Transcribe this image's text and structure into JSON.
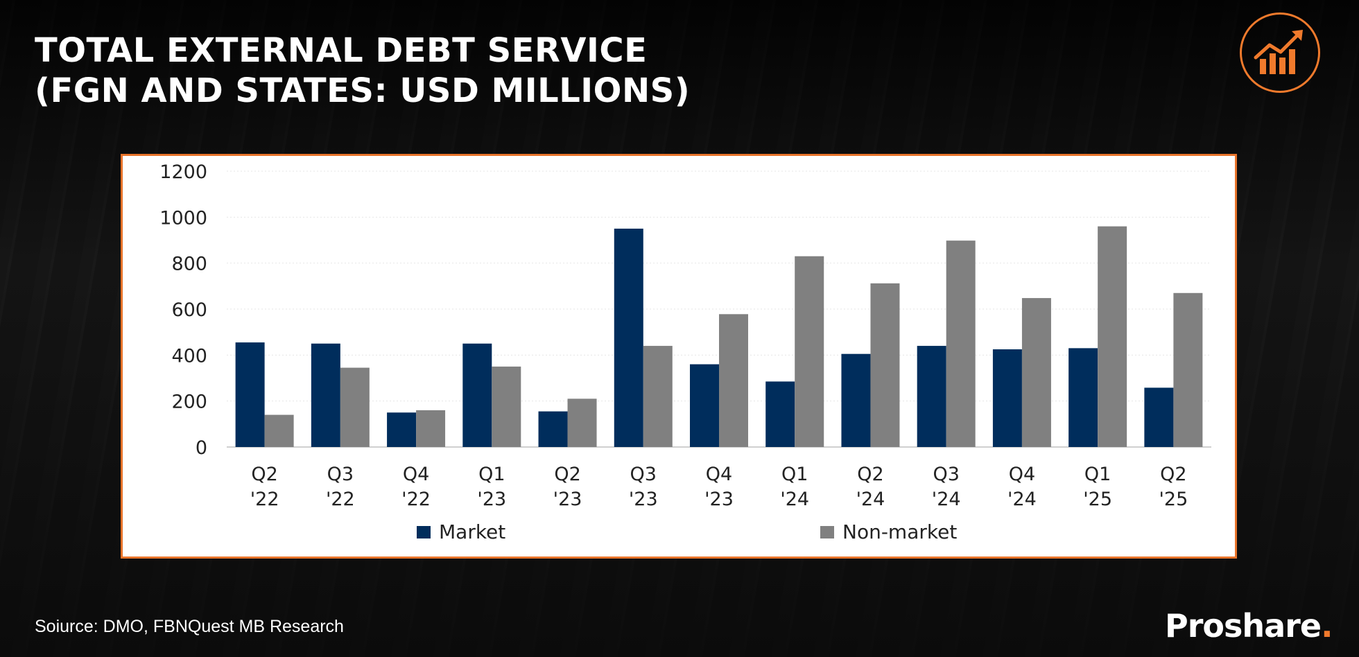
{
  "header": {
    "title_line1": "TOTAL EXTERNAL DEBT SERVICE",
    "title_line2": "(FGN AND STATES: USD MILLIONS)"
  },
  "footer": {
    "source": "Soiurce: DMO, FBNQuest MB Research",
    "brand": "Proshare",
    "brand_dot": "."
  },
  "logo": {
    "icon": "growth-chart-icon",
    "color": "#f07a2c"
  },
  "chart_data": {
    "type": "bar",
    "categories": [
      [
        "Q2",
        "'22"
      ],
      [
        "Q3",
        "'22"
      ],
      [
        "Q4",
        "'22"
      ],
      [
        "Q1",
        "'23"
      ],
      [
        "Q2",
        "'23"
      ],
      [
        "Q3",
        "'23"
      ],
      [
        "Q4",
        "'23"
      ],
      [
        "Q1",
        "'24"
      ],
      [
        "Q2",
        "'24"
      ],
      [
        "Q3",
        "'24"
      ],
      [
        "Q4",
        "'24"
      ],
      [
        "Q1",
        "'25"
      ],
      [
        "Q2",
        "'25"
      ]
    ],
    "series": [
      {
        "name": "Market",
        "color": "#002d5c",
        "values": [
          455,
          450,
          150,
          450,
          155,
          950,
          360,
          285,
          405,
          440,
          425,
          430,
          258
        ]
      },
      {
        "name": "Non-market",
        "color": "#808080",
        "values": [
          140,
          345,
          160,
          350,
          210,
          440,
          578,
          830,
          712,
          898,
          648,
          960,
          670
        ]
      }
    ],
    "yticks": [
      0,
      200,
      400,
      600,
      800,
      1000,
      1200
    ],
    "ylim": [
      0,
      1200
    ],
    "grid": true,
    "legend": "bottom"
  }
}
